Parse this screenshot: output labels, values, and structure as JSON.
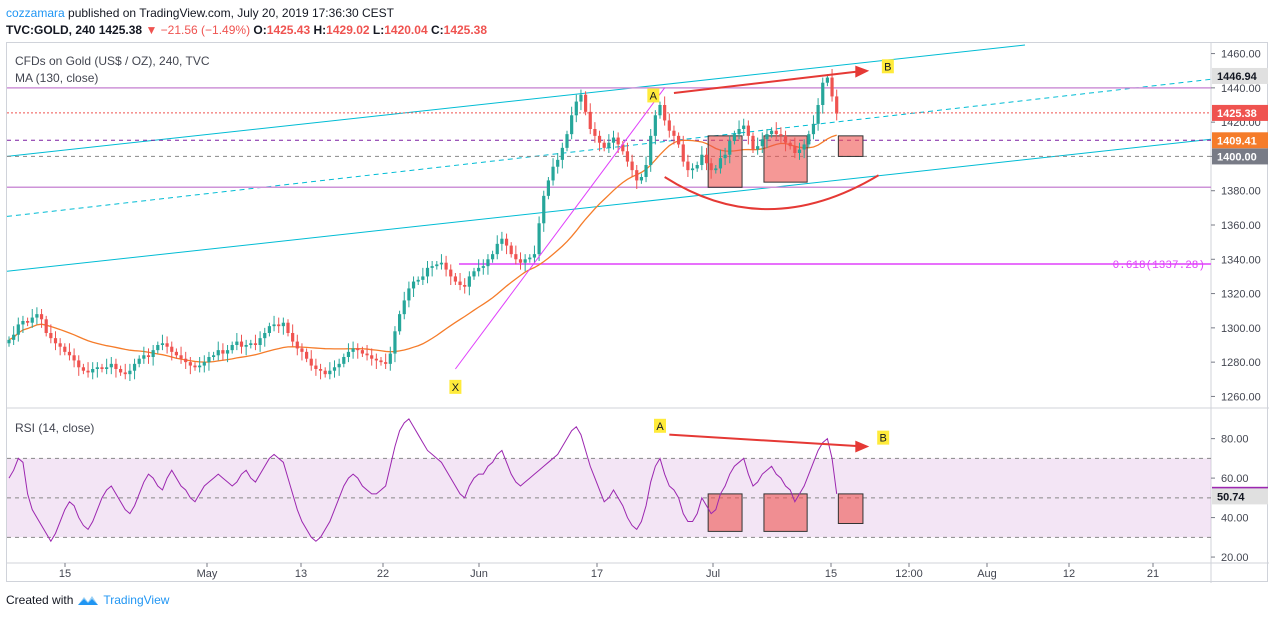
{
  "header": {
    "line1_user": "cozzamara",
    "line1_text": " published on TradingView.com, July 20, 2019 17:36:30 CEST",
    "symbol": "TVC:GOLD, 240",
    "last": "1425.38",
    "change": "−21.56 (−1.49%)",
    "open_label": "O:",
    "open": "1425.43",
    "high_label": "H:",
    "high": "1429.02",
    "low_label": "L:",
    "low": "1420.04",
    "close_label": "C:",
    "close": "1425.38"
  },
  "legend": {
    "title": "CFDs on Gold (US$ / OZ), 240, TVC",
    "ma": "MA (130, close)",
    "rsi": "RSI (14, close)"
  },
  "footer": {
    "created": "Created with",
    "brand": "TradingView"
  },
  "colors": {
    "up": "#26a69a",
    "down": "#ef5350",
    "ma": "#f57c2a",
    "rsi": "#9c27b0",
    "channel": "#00bcd4",
    "horizontal": "#ce93d8",
    "arrow": "#e53935",
    "box": "#ef5350",
    "label_yellow": "#ffeb3b"
  },
  "chart_data": [
    {
      "type": "candlestick",
      "title": "CFDs on Gold (US$ / OZ), 240, TVC",
      "ylim": [
        1255,
        1465
      ],
      "y_ticks": [
        1260,
        1280,
        1300,
        1320,
        1340,
        1360,
        1380,
        1400,
        1420,
        1440,
        1460
      ],
      "x_tick_labels": [
        "15",
        "May",
        "13",
        "22",
        "Jun",
        "17",
        "Jul",
        "15",
        "12:00",
        "Aug",
        "12",
        "21"
      ],
      "price_labels": [
        {
          "text": "1446.94",
          "value": 1446.94,
          "color": "#e0e0e0"
        },
        {
          "text": "1425.38",
          "value": 1425.38,
          "color": "#ef5350"
        },
        {
          "text": "1409.41",
          "value": 1409.41,
          "color": "#f57c2a"
        },
        {
          "text": "1400.00",
          "value": 1400.0,
          "color": "#787b86"
        }
      ],
      "fib_label": "0.618(1337.28)",
      "fib_level": 1337.28,
      "horizontal_levels": [
        1440,
        1382
      ],
      "dashed_levels": [
        1425.38,
        1409.41,
        1400
      ],
      "pattern_labels": [
        "X",
        "A",
        "B"
      ],
      "close_series": [
        1293,
        1296,
        1302,
        1304,
        1303,
        1306,
        1308,
        1305,
        1297,
        1294,
        1291,
        1289,
        1286,
        1284,
        1281,
        1277,
        1275,
        1274,
        1276,
        1277,
        1276,
        1277,
        1279,
        1276,
        1274,
        1273,
        1275,
        1279,
        1282,
        1284,
        1283,
        1287,
        1290,
        1291,
        1289,
        1286,
        1284,
        1282,
        1280,
        1278,
        1277,
        1278,
        1280,
        1283,
        1284,
        1287,
        1285,
        1287,
        1290,
        1292,
        1289,
        1290,
        1291,
        1290,
        1294,
        1297,
        1301,
        1302,
        1301,
        1303,
        1297,
        1292,
        1288,
        1286,
        1282,
        1278,
        1276,
        1275,
        1273,
        1275,
        1277,
        1279,
        1283,
        1286,
        1288,
        1287,
        1285,
        1284,
        1282,
        1281,
        1280,
        1279,
        1285,
        1298,
        1308,
        1316,
        1323,
        1327,
        1328,
        1330,
        1335,
        1336,
        1337,
        1338,
        1334,
        1330,
        1327,
        1325,
        1324,
        1330,
        1333,
        1335,
        1336,
        1340,
        1343,
        1349,
        1352,
        1348,
        1343,
        1340,
        1338,
        1340,
        1341,
        1343,
        1361,
        1377,
        1386,
        1394,
        1398,
        1405,
        1413,
        1424,
        1432,
        1436,
        1426,
        1416,
        1412,
        1408,
        1405,
        1408,
        1411,
        1407,
        1403,
        1397,
        1392,
        1386,
        1388,
        1395,
        1412,
        1424,
        1430,
        1421,
        1415,
        1412,
        1407,
        1397,
        1392,
        1393,
        1395,
        1401,
        1396,
        1392,
        1393,
        1399,
        1401,
        1409,
        1413,
        1416,
        1418,
        1412,
        1404,
        1406,
        1410,
        1413,
        1415,
        1413,
        1412,
        1408,
        1406,
        1402,
        1404,
        1407,
        1413,
        1419,
        1430,
        1443,
        1446,
        1435,
        1425
      ]
    },
    {
      "type": "line",
      "title": "RSI (14, close)",
      "ylim": [
        18,
        94
      ],
      "y_ticks": [
        20,
        40,
        60,
        80
      ],
      "y_tick_labels": [
        "20.00",
        "40.00",
        "60.00",
        "80.00"
      ],
      "band": [
        30,
        70
      ],
      "mid": 50,
      "value_labels": [
        {
          "text": "51.54",
          "value": 51.54,
          "color": "#9c27b0"
        },
        {
          "text": "50.74",
          "value": 50.74,
          "color": "#e0e0e0"
        }
      ],
      "pattern_labels": [
        "A",
        "B"
      ],
      "values": [
        60,
        64,
        70,
        68,
        52,
        44,
        40,
        36,
        32,
        28,
        32,
        38,
        44,
        48,
        46,
        40,
        36,
        34,
        38,
        44,
        50,
        54,
        56,
        52,
        48,
        44,
        42,
        46,
        52,
        58,
        62,
        60,
        56,
        54,
        60,
        64,
        60,
        56,
        54,
        50,
        48,
        52,
        56,
        58,
        60,
        62,
        60,
        58,
        56,
        58,
        62,
        64,
        60,
        58,
        62,
        66,
        70,
        72,
        70,
        68,
        60,
        52,
        44,
        38,
        34,
        30,
        28,
        30,
        34,
        38,
        44,
        50,
        56,
        60,
        62,
        60,
        56,
        54,
        52,
        52,
        54,
        56,
        66,
        76,
        84,
        88,
        90,
        86,
        82,
        78,
        74,
        72,
        70,
        68,
        64,
        60,
        56,
        52,
        50,
        56,
        60,
        62,
        62,
        66,
        68,
        72,
        74,
        68,
        62,
        58,
        56,
        58,
        60,
        62,
        64,
        66,
        68,
        70,
        72,
        76,
        80,
        84,
        86,
        82,
        74,
        66,
        60,
        54,
        48,
        50,
        54,
        50,
        46,
        40,
        36,
        34,
        38,
        46,
        58,
        66,
        70,
        62,
        56,
        54,
        50,
        42,
        38,
        38,
        42,
        50,
        46,
        42,
        44,
        52,
        56,
        62,
        66,
        68,
        70,
        62,
        56,
        58,
        62,
        64,
        66,
        62,
        60,
        56,
        54,
        48,
        52,
        56,
        62,
        68,
        74,
        78,
        80,
        70,
        52
      ]
    }
  ]
}
